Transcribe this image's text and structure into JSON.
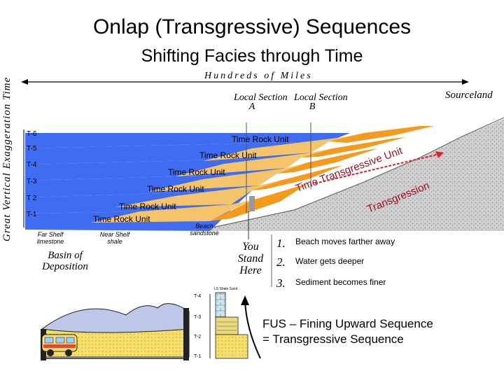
{
  "title": "Onlap (Transgressive) Sequences",
  "subtitle": "Shifting Facies through Time",
  "scale_label": "Hundreds of Miles",
  "sourceland_label": "Sourceland",
  "vertical_axis_label": "Great Vertical Exaggeration Time",
  "sections": [
    {
      "name": "Local Section",
      "letter": "A"
    },
    {
      "name": "Local Section",
      "letter": "B"
    }
  ],
  "time_ticks": [
    "T-6",
    "T-5",
    "T-4",
    "T-3",
    "T 2",
    "T-1"
  ],
  "time_rock_units": [
    "Time Rock Unit",
    "Time Rock Unit",
    "Time Rock Unit",
    "Time Rock Unit",
    "Time Rock Unit",
    "Time Rock Unit"
  ],
  "transgression_labels": [
    "Time Transgressive Unit",
    "Transgression"
  ],
  "facies": {
    "far_shelf": "Far Shelf limestone",
    "near_shelf": "Near Shelf shale",
    "beach": "Beach sandstone"
  },
  "basin_label": "Basin of Deposition",
  "you_stand_here": "You Stand Here",
  "points": [
    {
      "num": "1.",
      "text": "Beach moves farther away"
    },
    {
      "num": "2.",
      "text": "Water gets deeper"
    },
    {
      "num": "3.",
      "text": "Sediment becomes finer"
    }
  ],
  "column": {
    "header": "LS Shale Sand",
    "ticks": [
      "T-4",
      "T-3",
      "T-2",
      "T-1"
    ]
  },
  "fus_lines": [
    "FUS – Fining Upward Sequence",
    "= Transgressive Sequence"
  ],
  "colors": {
    "limestone": "#3f6cf0",
    "shale": "#f5c46a",
    "sand": "#f39a1f",
    "rock": "#c8c8c8",
    "arrow": "#e0202a"
  }
}
